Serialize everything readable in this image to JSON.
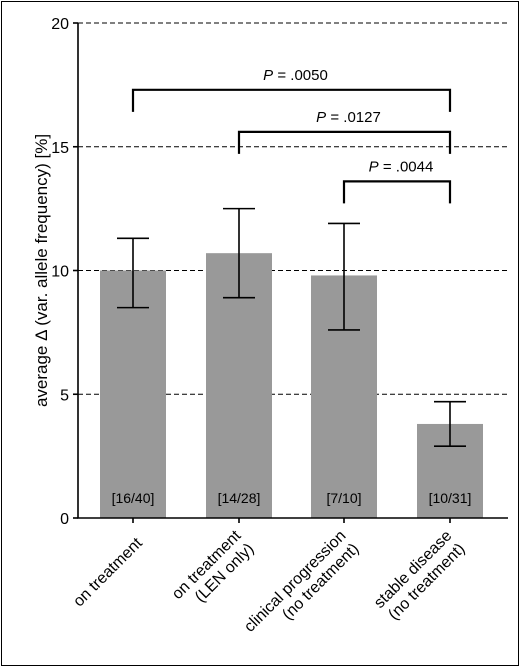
{
  "chart_data": {
    "type": "bar",
    "title": "",
    "xlabel": "",
    "ylabel": "average Δ (var. allele frequency) [%]",
    "ylim": [
      0,
      20
    ],
    "yticks": [
      0,
      5,
      10,
      15,
      20
    ],
    "grid": "dashed horizontal at 5, 10, 15, 20",
    "categories": [
      [
        "on treatment"
      ],
      [
        "on treatment",
        "(LEN only)"
      ],
      [
        "clinical progression",
        "(no treatment)"
      ],
      [
        "stable disease",
        "(no treatment)"
      ]
    ],
    "values": [
      10.0,
      10.7,
      9.8,
      3.8
    ],
    "error_low": [
      8.5,
      8.9,
      7.6,
      2.9
    ],
    "error_high": [
      11.3,
      12.5,
      11.9,
      4.7
    ],
    "bar_labels": [
      "[16/40]",
      "[14/28]",
      "[7/10]",
      "[10/31]"
    ],
    "comparisons": [
      {
        "from": 0,
        "to": 3,
        "y": 17.3,
        "label_italic": "P",
        "label_rest": " = .0050"
      },
      {
        "from": 1,
        "to": 3,
        "y": 15.6,
        "label_italic": "P",
        "label_rest": " = .0127"
      },
      {
        "from": 2,
        "to": 3,
        "y": 13.6,
        "label_italic": "P",
        "label_rest": " = .0044"
      }
    ],
    "colors": {
      "bar": "#999999",
      "line": "#000000"
    }
  }
}
